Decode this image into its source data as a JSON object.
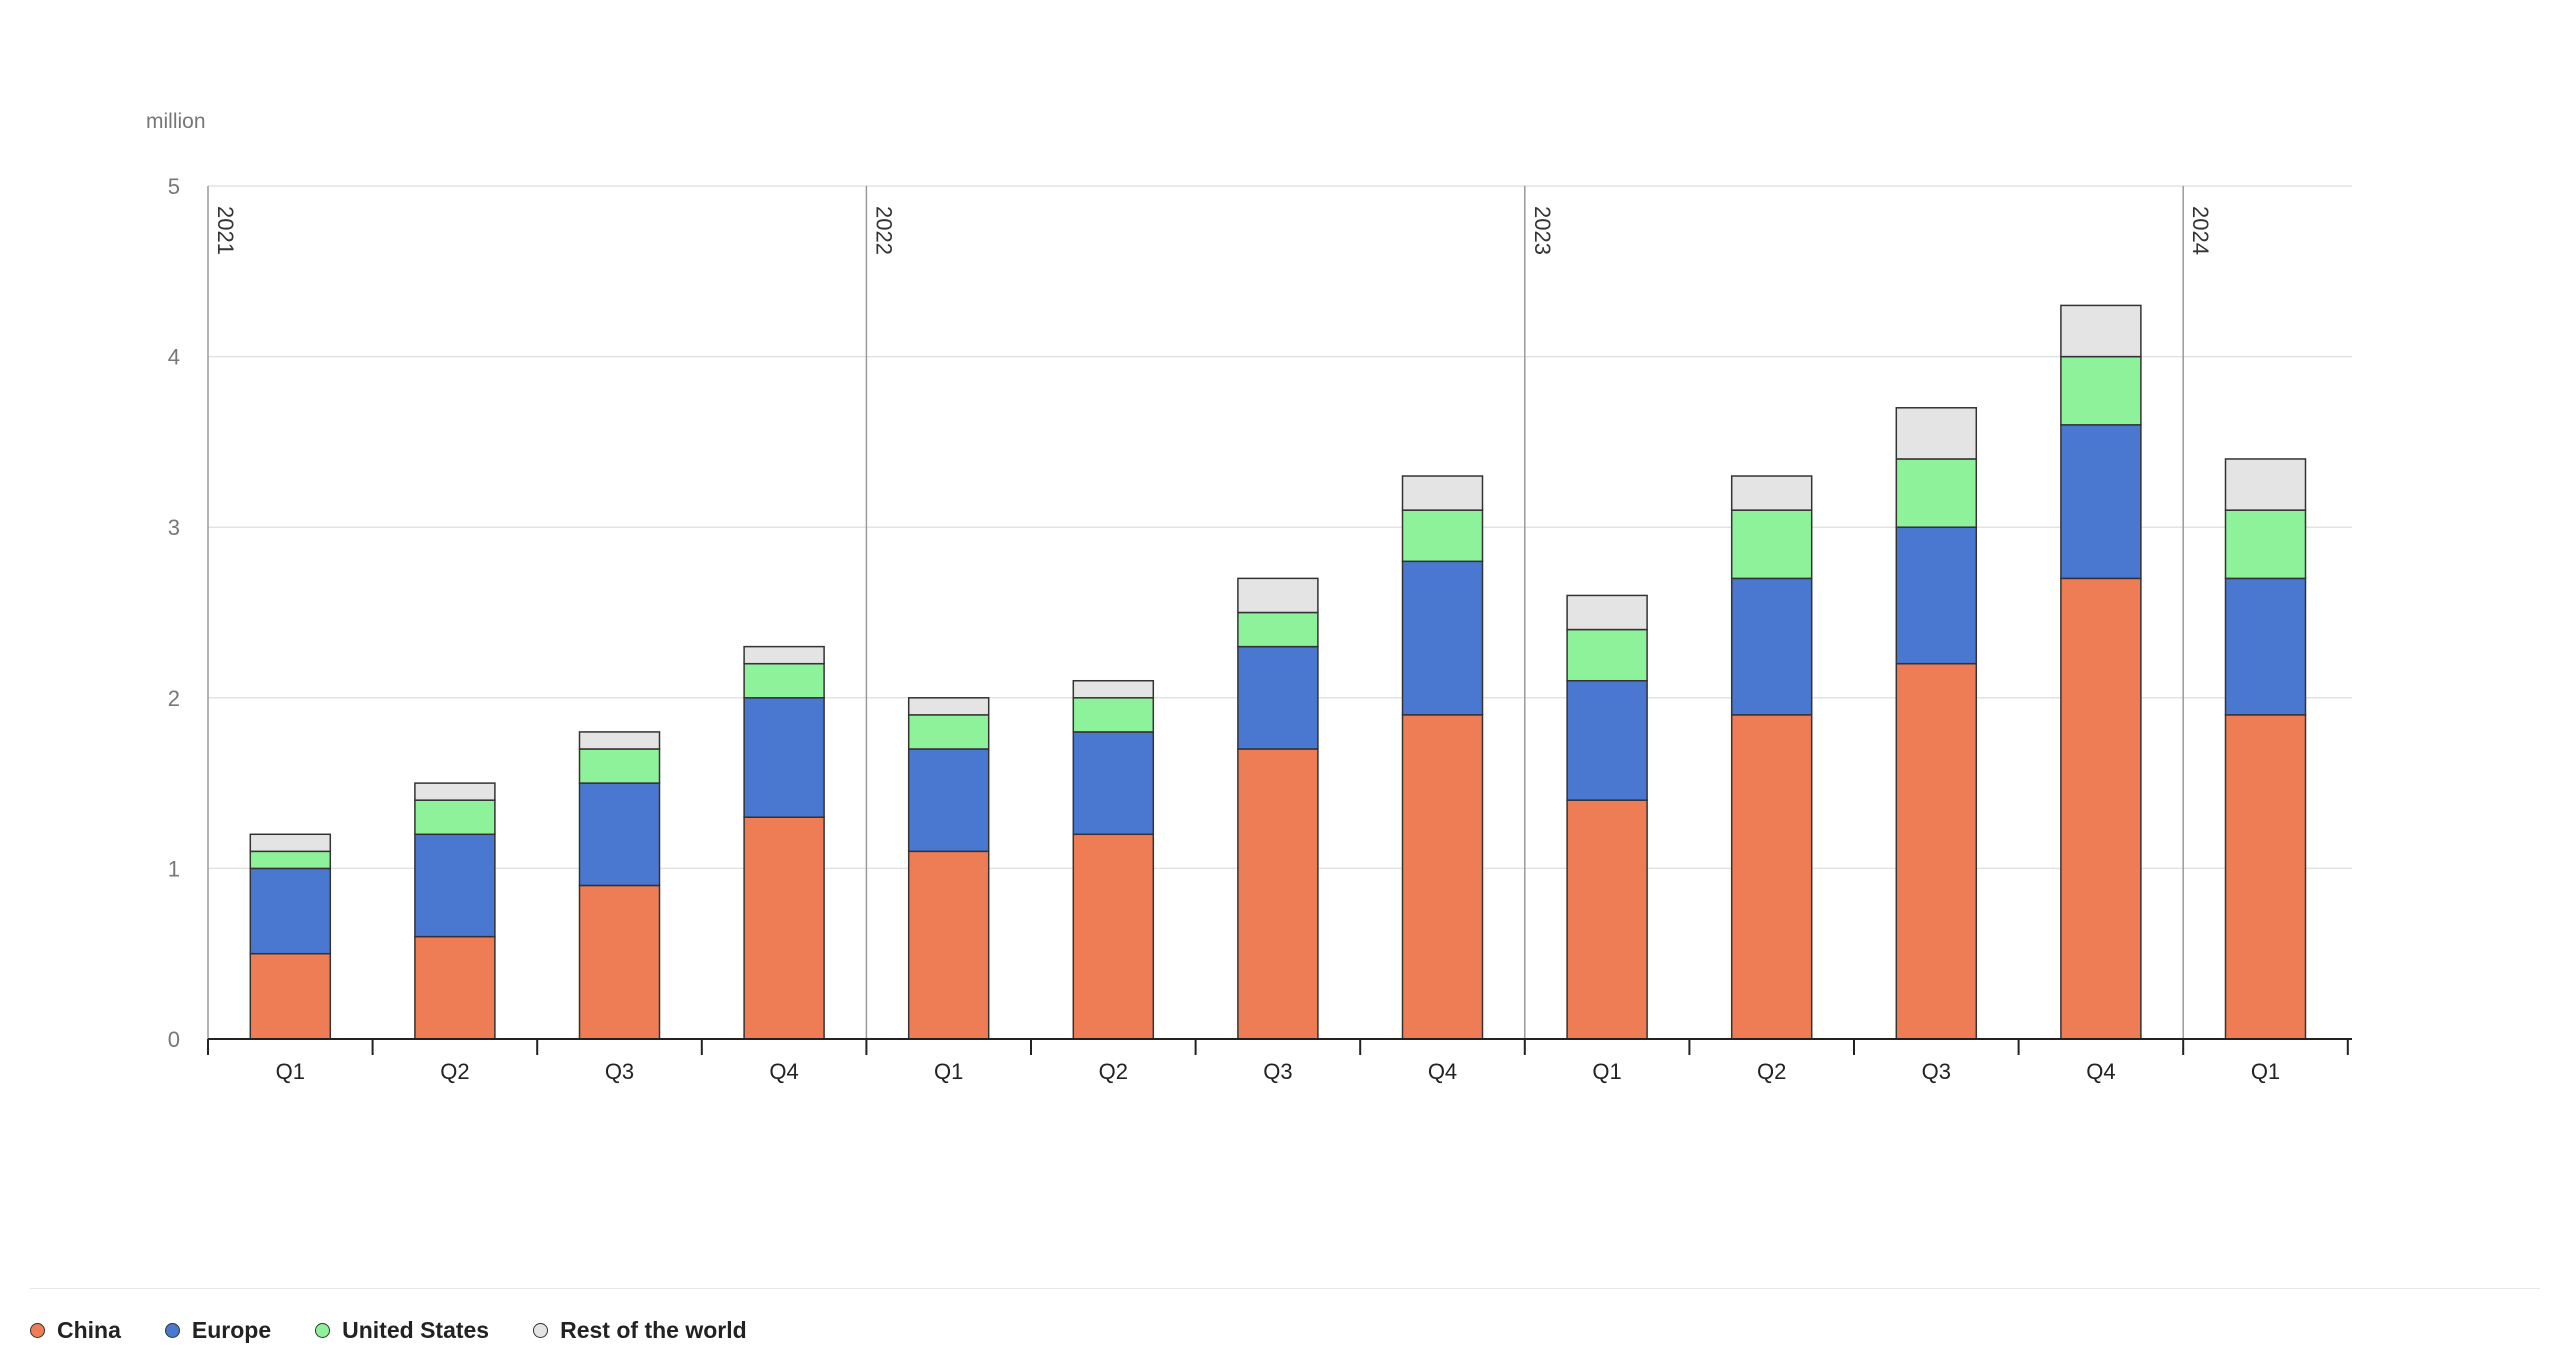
{
  "chart_data": {
    "type": "bar",
    "stacked": true,
    "unit_label": "million",
    "years": [
      {
        "label": "2021",
        "quarters": 4
      },
      {
        "label": "2022",
        "quarters": 4
      },
      {
        "label": "2023",
        "quarters": 4
      },
      {
        "label": "2024",
        "quarters": 1
      }
    ],
    "categories": [
      "Q1",
      "Q2",
      "Q3",
      "Q4",
      "Q1",
      "Q2",
      "Q3",
      "Q4",
      "Q1",
      "Q2",
      "Q3",
      "Q4",
      "Q1"
    ],
    "series": [
      {
        "name": "China",
        "color": "#ee7d55",
        "values": [
          0.5,
          0.6,
          0.9,
          1.3,
          1.1,
          1.2,
          1.7,
          1.9,
          1.4,
          1.9,
          2.2,
          2.7,
          1.9
        ]
      },
      {
        "name": "Europe",
        "color": "#4a77cf",
        "values": [
          0.5,
          0.6,
          0.6,
          0.7,
          0.6,
          0.6,
          0.6,
          0.9,
          0.7,
          0.8,
          0.8,
          0.9,
          0.8
        ]
      },
      {
        "name": "United States",
        "color": "#8ef29a",
        "values": [
          0.1,
          0.2,
          0.2,
          0.2,
          0.2,
          0.2,
          0.2,
          0.3,
          0.3,
          0.4,
          0.4,
          0.4,
          0.4
        ]
      },
      {
        "name": "Rest of the world",
        "color": "#e4e4e4",
        "values": [
          0.1,
          0.1,
          0.1,
          0.1,
          0.1,
          0.1,
          0.2,
          0.2,
          0.2,
          0.2,
          0.3,
          0.3,
          0.3
        ]
      }
    ],
    "ylim": [
      0,
      5
    ],
    "yticks": [
      0,
      1,
      2,
      3,
      4,
      5
    ],
    "grid": true,
    "legend_position": "bottom-left"
  }
}
